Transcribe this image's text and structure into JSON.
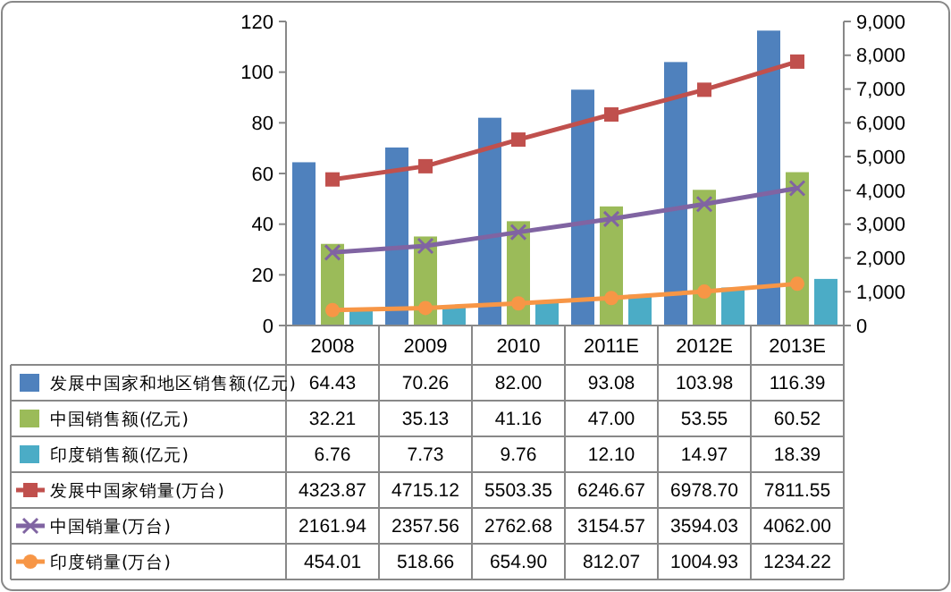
{
  "chart_data": {
    "type": "bar",
    "categories": [
      "2008",
      "2009",
      "2010",
      "2011E",
      "2012E",
      "2013E"
    ],
    "ylim": [
      0,
      120
    ],
    "yticks": [
      0,
      20,
      40,
      60,
      80,
      100,
      120
    ],
    "y2lim": [
      0,
      9000
    ],
    "y2ticks": [
      0,
      {
        "value": 1000,
        "label": "1,000"
      },
      {
        "value": 2000,
        "label": "2,000"
      },
      {
        "value": 3000,
        "label": "3,000"
      },
      {
        "value": 4000,
        "label": "4,000"
      },
      {
        "value": 5000,
        "label": "5,000"
      },
      {
        "value": 6000,
        "label": "6,000"
      },
      {
        "value": 7000,
        "label": "7,000"
      },
      {
        "value": 8000,
        "label": "8,000"
      },
      {
        "value": 9000,
        "label": "9,000"
      }
    ],
    "legend": "bottom",
    "series": [
      {
        "name": "发展中国家和地区销售额(亿元)",
        "color": "#4f81bd",
        "values": [
          64.43,
          70.26,
          82.0,
          93.08,
          103.98,
          116.39
        ],
        "value_labels": [
          "64.43",
          "70.26",
          "82.00",
          "93.08",
          "103.98",
          "116.39"
        ]
      },
      {
        "name": "中国销售额(亿元)",
        "color": "#9bbb59",
        "values": [
          32.21,
          35.13,
          41.16,
          47.0,
          53.55,
          60.52
        ],
        "value_labels": [
          "32.21",
          "35.13",
          "41.16",
          "47.00",
          "53.55",
          "60.52"
        ]
      },
      {
        "name": "印度销售额(亿元)",
        "color": "#4bacc6",
        "values": [
          6.76,
          7.73,
          9.76,
          12.1,
          14.97,
          18.39
        ],
        "value_labels": [
          "6.76",
          "7.73",
          "9.76",
          "12.10",
          "14.97",
          "18.39"
        ]
      },
      {
        "name": "发展中国家销量(万台)",
        "type": "line",
        "axis": "y2",
        "marker": "square",
        "color": "#c0504d",
        "values": [
          4323.87,
          4715.12,
          5503.35,
          6246.67,
          6978.7,
          7811.55
        ],
        "value_labels": [
          "4323.87",
          "4715.12",
          "5503.35",
          "6246.67",
          "6978.70",
          "7811.55"
        ]
      },
      {
        "name": "中国销量(万台)",
        "type": "line",
        "axis": "y2",
        "marker": "cross",
        "color": "#8064a2",
        "values": [
          2161.94,
          2357.56,
          2762.68,
          3154.57,
          3594.03,
          4062.0
        ],
        "value_labels": [
          "2161.94",
          "2357.56",
          "2762.68",
          "3154.57",
          "3594.03",
          "4062.00"
        ]
      },
      {
        "name": "印度销量(万台)",
        "type": "line",
        "axis": "y2",
        "marker": "circle",
        "color": "#f79646",
        "values": [
          454.01,
          518.66,
          654.9,
          812.07,
          1004.93,
          1234.22
        ],
        "value_labels": [
          "454.01",
          "518.66",
          "654.90",
          "812.07",
          "1004.93",
          "1234.22"
        ]
      }
    ]
  }
}
